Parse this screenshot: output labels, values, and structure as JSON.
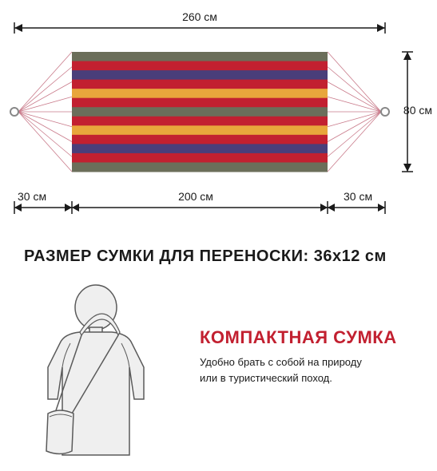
{
  "diagram": {
    "top_width_label": "260 см",
    "height_label": "80 см",
    "bottom_left_label": "30 см",
    "bottom_center_label": "200 см",
    "bottom_right_label": "30 см",
    "stripe_colors": [
      "#6b6e5a",
      "#c22030",
      "#4a3e7a",
      "#c22030",
      "#e8a63c",
      "#c22030",
      "#6b6e5a",
      "#c22030",
      "#e8a63c",
      "#c22030",
      "#4a3e7a",
      "#c22030",
      "#6b6e5a"
    ],
    "ring_stroke": "#888888",
    "rope_stroke": "#c97a8a",
    "arrow_stroke": "#1a1a1a"
  },
  "bag_size_title": "РАЗМЕР СУМКИ ДЛЯ ПЕРЕНОСКИ: 36x12 см",
  "compact": {
    "title": "КОМПАКТНАЯ СУМКА",
    "desc_line1": "Удобно брать с собой на природу",
    "desc_line2": "или в туристический поход."
  },
  "colors": {
    "text": "#1a1a1a",
    "accent": "#c22030",
    "illustration_stroke": "#5a5a5a",
    "illustration_fill": "#efefef"
  }
}
